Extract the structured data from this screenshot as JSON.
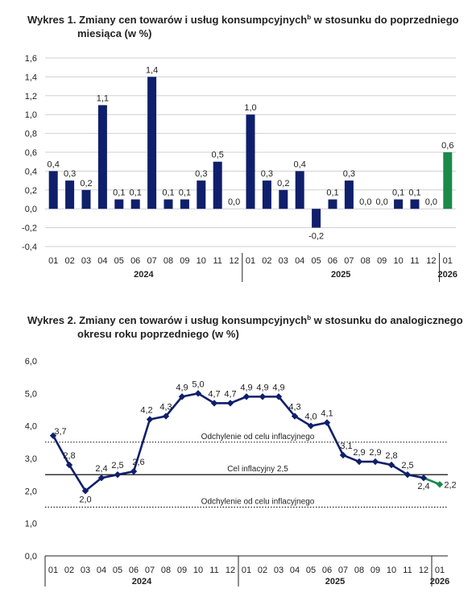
{
  "charts": [
    {
      "title_line1": "Wykres 1. Zmiany cen towarów i usług konsumpcyjnych",
      "title_sup": "b",
      "title_line1_rest": " w stosunku do poprzedniego",
      "title_line2": "miesiąca (w %)"
    },
    {
      "title_line1": "Wykres 2. Zmiany cen towarów i usług konsumpcyjnych",
      "title_sup": "b",
      "title_line1_rest": " w stosunku do analogicznego",
      "title_line2": "okresu roku poprzedniego (w %)"
    }
  ],
  "chart_data": [
    {
      "type": "bar",
      "categories": [
        "01",
        "02",
        "03",
        "04",
        "05",
        "06",
        "07",
        "08",
        "09",
        "10",
        "11",
        "12",
        "01",
        "02",
        "03",
        "04",
        "05",
        "06",
        "07",
        "08",
        "09",
        "10",
        "11",
        "12",
        "01"
      ],
      "year_labels": [
        {
          "label": "2024",
          "at_index": 5.5
        },
        {
          "label": "2025",
          "at_index": 17.5
        },
        {
          "label": "2026",
          "at_index": 24
        }
      ],
      "values": [
        0.4,
        0.3,
        0.2,
        1.1,
        0.1,
        0.1,
        1.4,
        0.1,
        0.1,
        0.3,
        0.5,
        0.0,
        1.0,
        0.3,
        0.2,
        0.4,
        -0.2,
        0.1,
        0.3,
        0.0,
        0.0,
        0.1,
        0.1,
        0.0,
        0.6
      ],
      "value_labels": [
        "0,4",
        "0,3",
        "0,2",
        "1,1",
        "0,1",
        "0,1",
        "1,4",
        "0,1",
        "0,1",
        "0,3",
        "0,5",
        "0,0",
        "1,0",
        "0,3",
        "0,2",
        "0,4",
        "-0,2",
        "0,1",
        "0,3",
        "0,0",
        "0,0",
        "0,1",
        "0,1",
        "0,0",
        "0,6"
      ],
      "ylim": [
        -0.4,
        1.6
      ],
      "yticks": [
        "-0,4",
        "-0,2",
        "0,0",
        "0,2",
        "0,4",
        "0,6",
        "0,8",
        "1,0",
        "1,2",
        "1,4",
        "1,6"
      ],
      "grid": true,
      "colors": {
        "bar": "#0f1f6b",
        "highlight": "#1a8a4a",
        "grid": "#d0d0d0"
      },
      "highlight_index": 24
    },
    {
      "type": "line",
      "categories": [
        "01",
        "02",
        "03",
        "04",
        "05",
        "06",
        "07",
        "08",
        "09",
        "10",
        "11",
        "12",
        "01",
        "02",
        "03",
        "04",
        "05",
        "06",
        "07",
        "08",
        "09",
        "10",
        "11",
        "12",
        "01"
      ],
      "year_labels": [
        {
          "label": "2024",
          "at_index": 5.5
        },
        {
          "label": "2025",
          "at_index": 17.5
        },
        {
          "label": "2026",
          "at_index": 24
        }
      ],
      "values": [
        3.7,
        2.8,
        2.0,
        2.4,
        2.5,
        2.6,
        4.2,
        4.3,
        4.9,
        5.0,
        4.7,
        4.7,
        4.9,
        4.9,
        4.9,
        4.3,
        4.0,
        4.1,
        3.1,
        2.9,
        2.9,
        2.8,
        2.5,
        2.4,
        2.2
      ],
      "value_labels": [
        "3,7",
        "2,8",
        "2,0",
        "2,4",
        "2,5",
        "2,6",
        "4,2",
        "4,3",
        "4,9",
        "5,0",
        "4,7",
        "4,7",
        "4,9",
        "4,9",
        "4,9",
        "4,3",
        "4,0",
        "4,1",
        "3,1",
        "2,9",
        "2,9",
        "2,8",
        "2,5",
        "2,4",
        "2,2"
      ],
      "ylim": [
        0,
        6
      ],
      "yticks": [
        "0,0",
        "1,0",
        "2,0",
        "3,0",
        "4,0",
        "5,0",
        "6,0"
      ],
      "grid": false,
      "reference_lines": [
        {
          "value": 3.5,
          "label": "Odchylenie od celu inflacyjnego",
          "style": "dotted"
        },
        {
          "value": 2.5,
          "label": "Cel inflacyjny 2,5",
          "style": "solid"
        },
        {
          "value": 1.5,
          "label": "Odchylenie od celu inflacyjnego",
          "style": "dotted"
        }
      ],
      "colors": {
        "line": "#0f1f6b",
        "highlight": "#1a8a4a",
        "ref": "#222222"
      },
      "highlight_index": 24
    }
  ]
}
